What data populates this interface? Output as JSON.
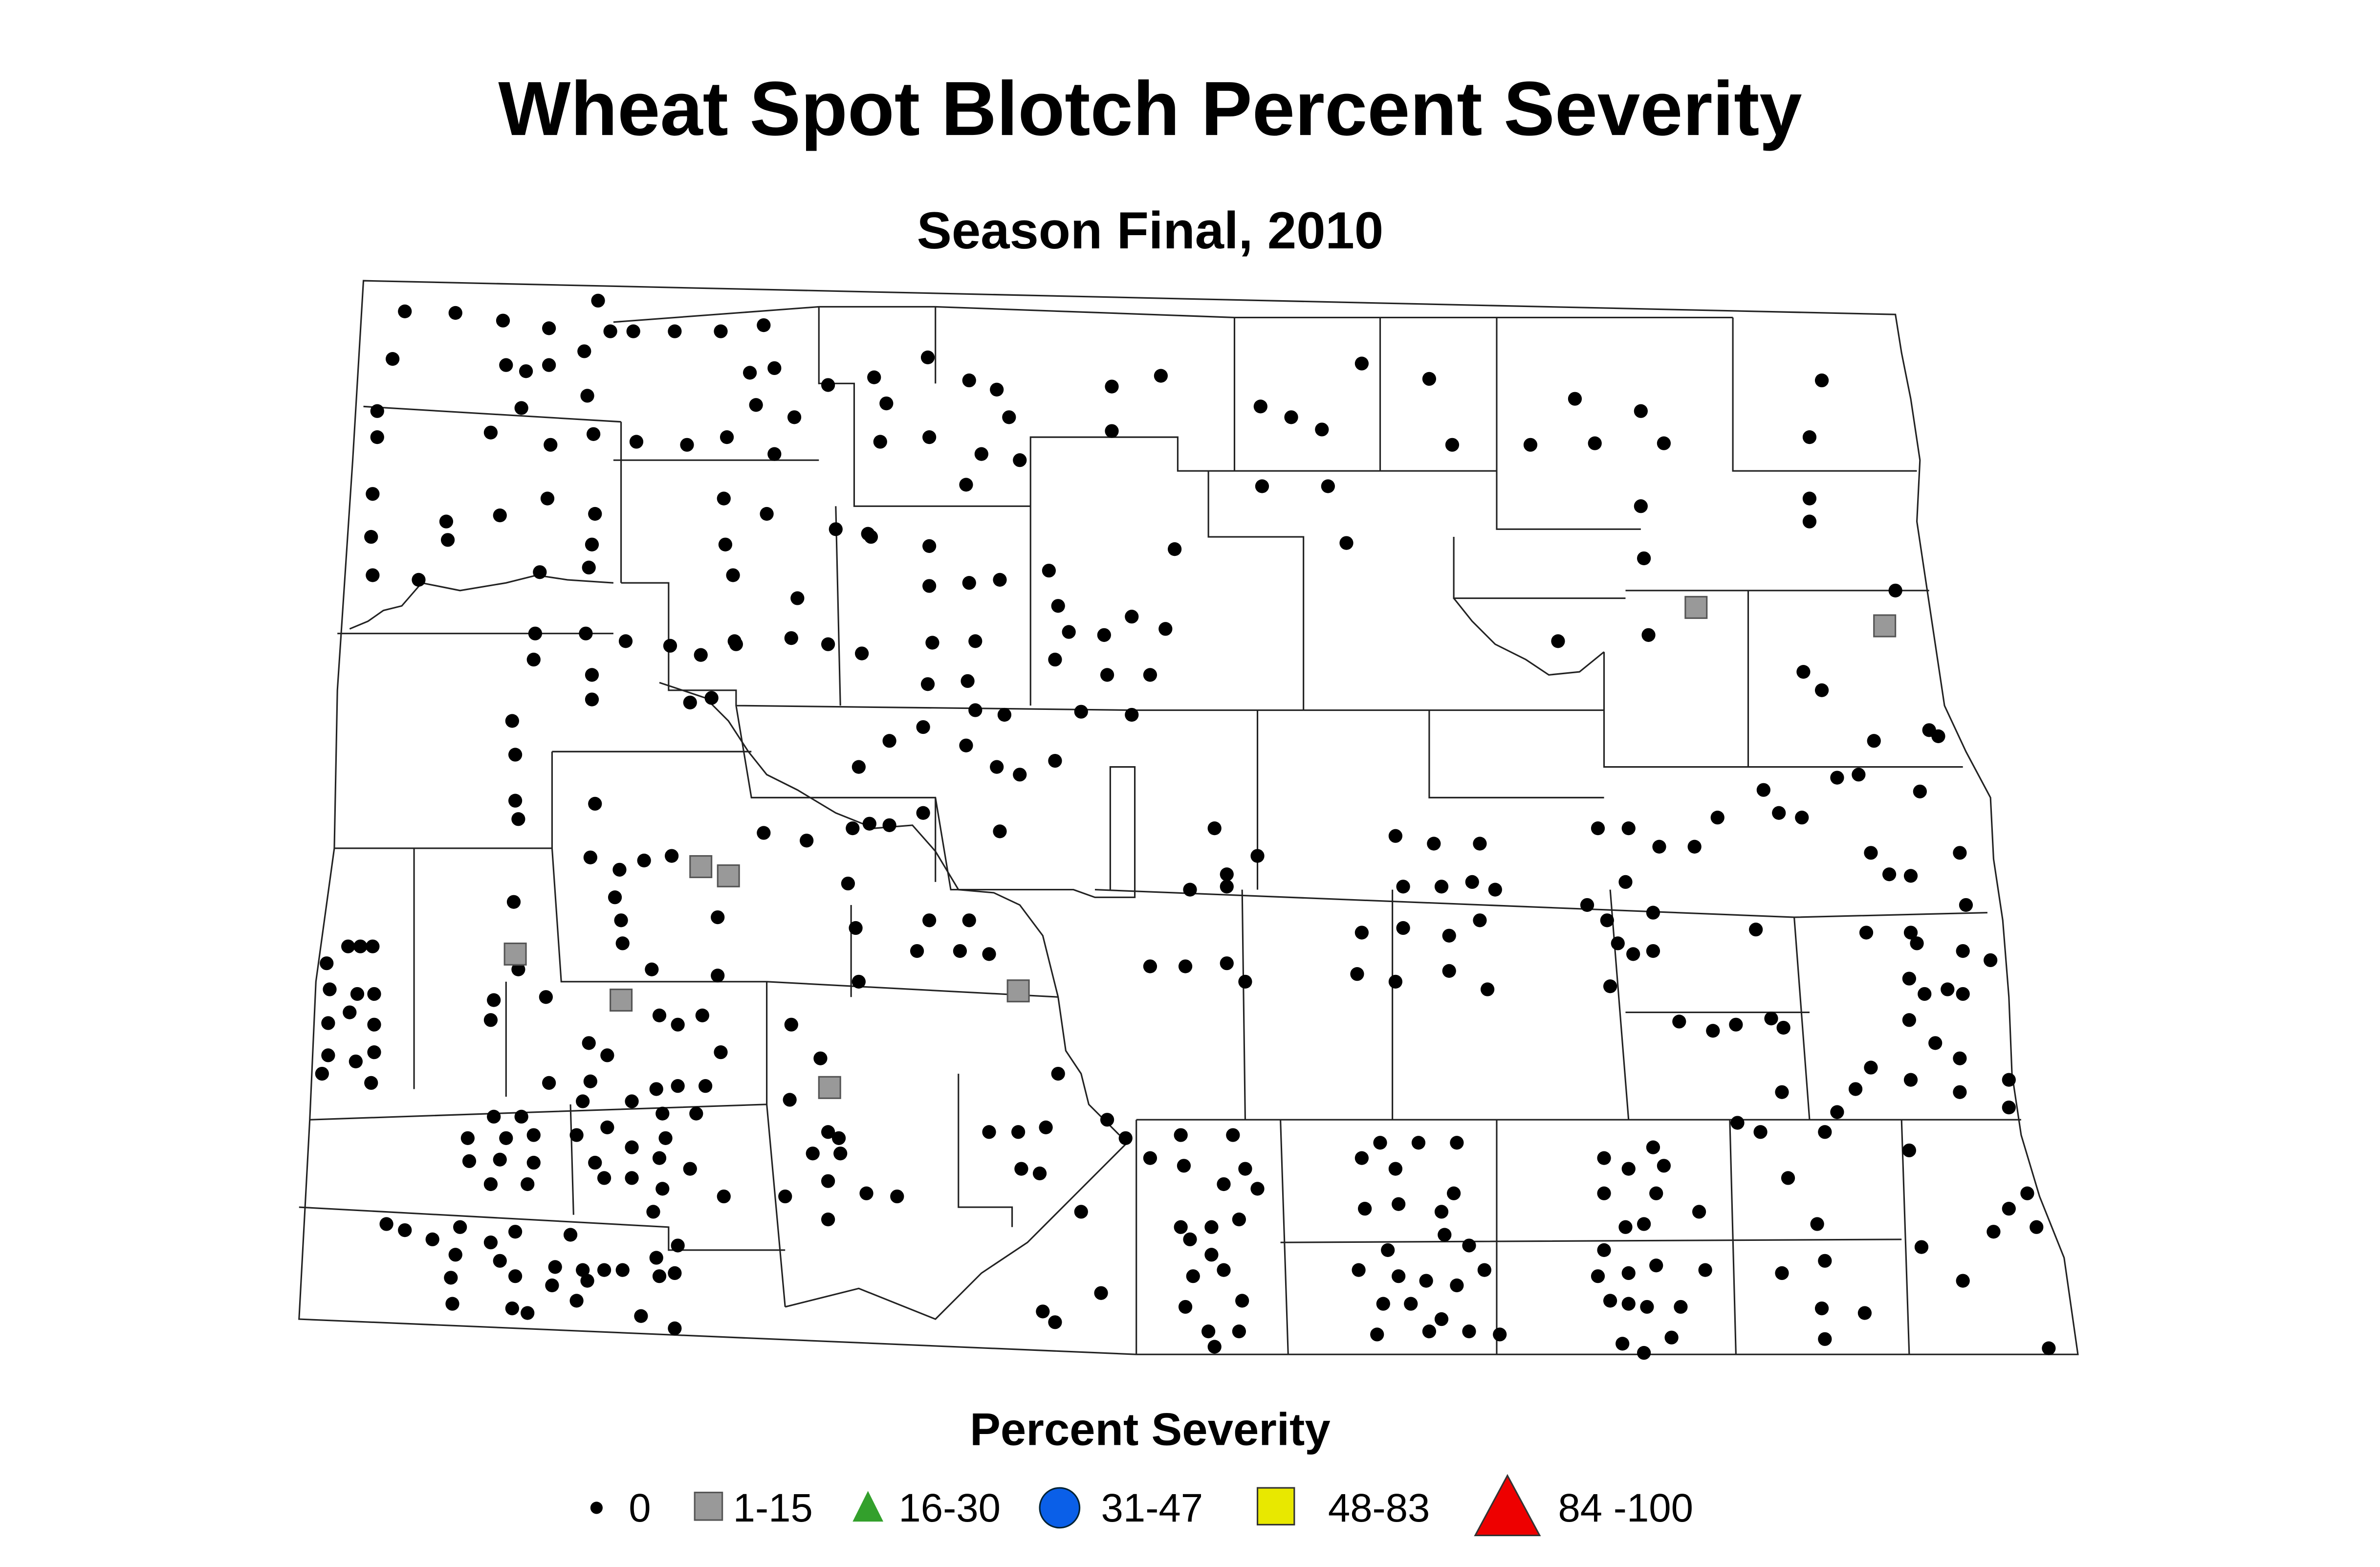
{
  "title": "Wheat Spot Blotch Percent Severity",
  "subtitle": "Season Final, 2010",
  "legend": {
    "title": "Percent Severity",
    "items": [
      {
        "label": "0"
      },
      {
        "label": "1-15"
      },
      {
        "label": "16-30"
      },
      {
        "label": "31-47"
      },
      {
        "label": "48-83"
      },
      {
        "label": "84 -100"
      }
    ]
  }
}
